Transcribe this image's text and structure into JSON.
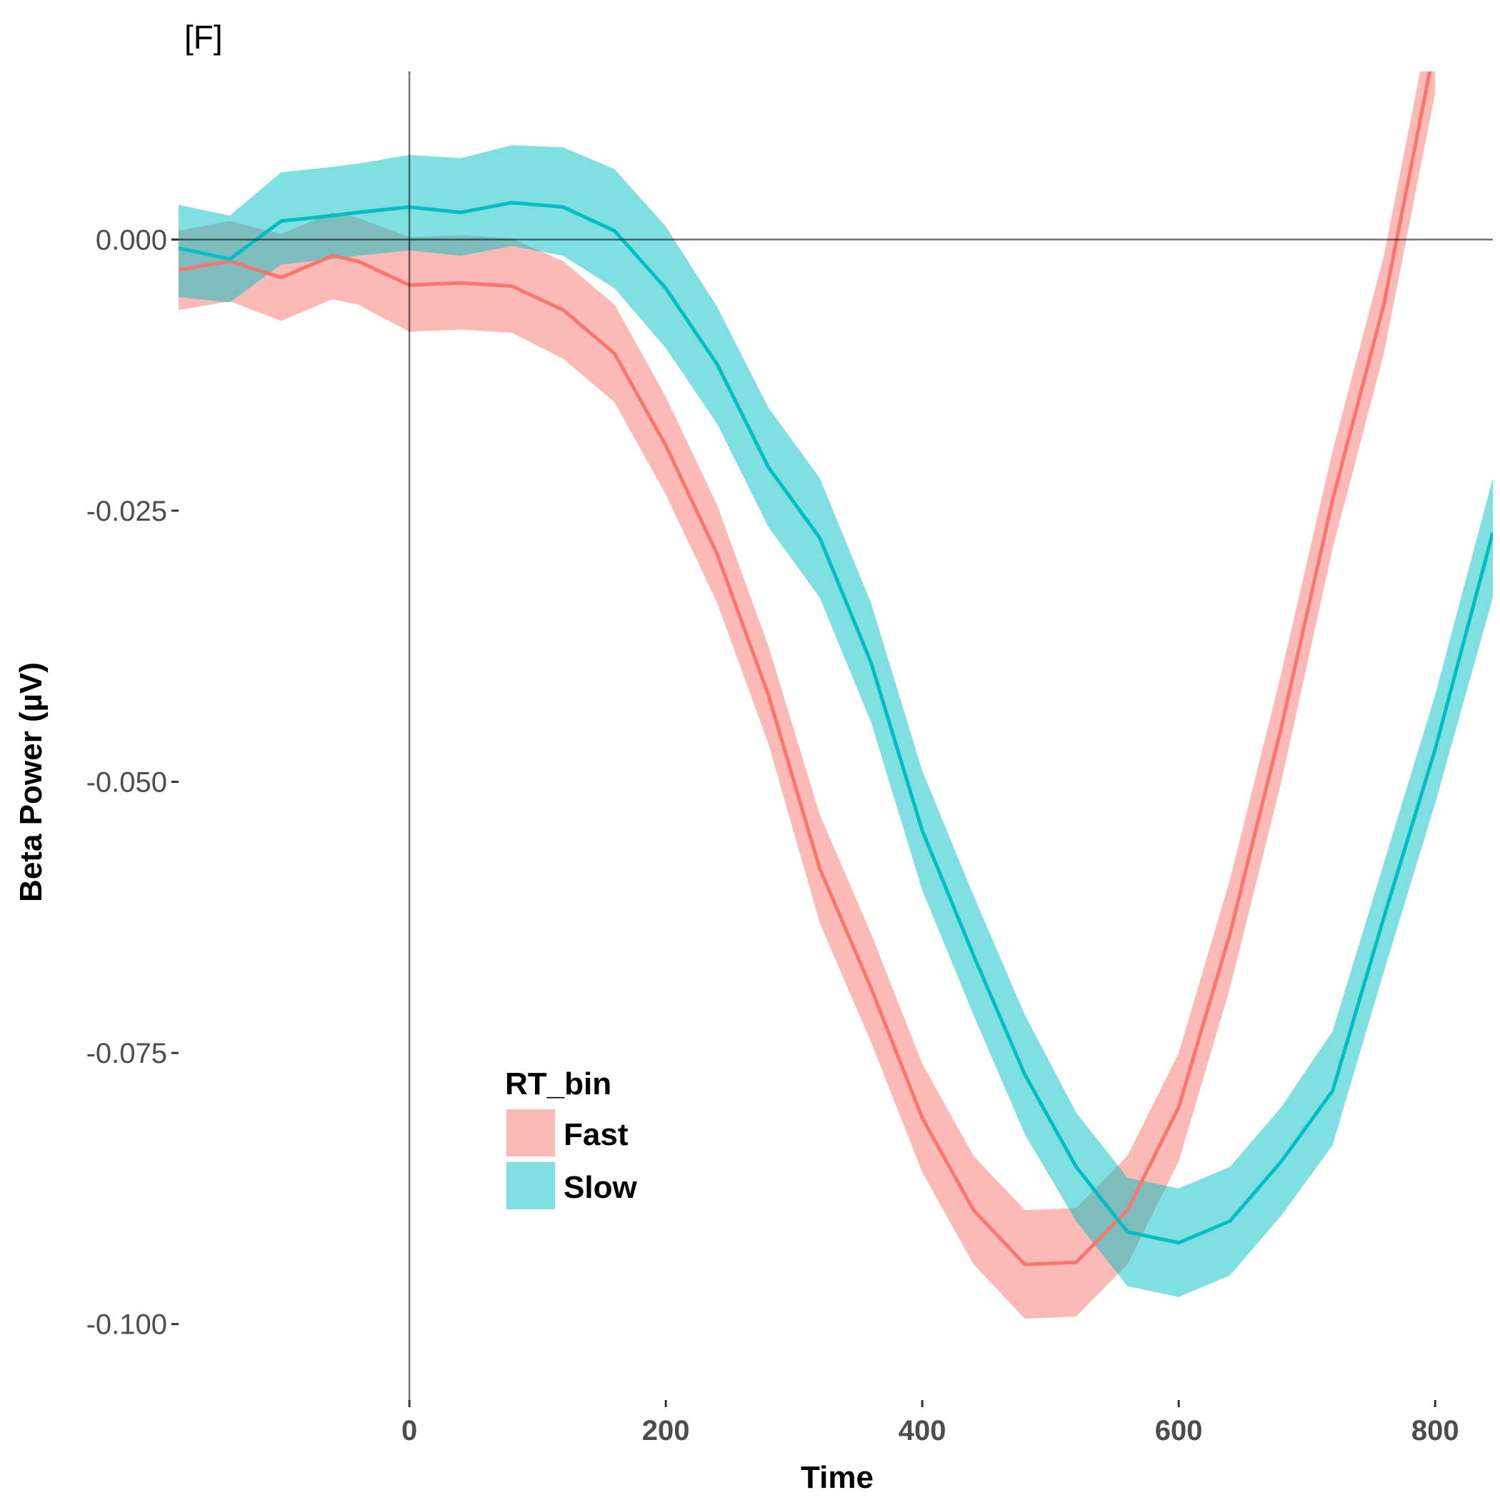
{
  "panel_tag": "[F]",
  "chart_data": {
    "type": "line",
    "title": "",
    "xlabel": "Time",
    "ylabel": "Beta Power (µV)",
    "xlim": [
      -180,
      845
    ],
    "ylim": [
      -0.107,
      0.0155
    ],
    "x_ticks": [
      0,
      200,
      400,
      600,
      800
    ],
    "y_ticks": [
      0.0,
      -0.025,
      -0.05,
      -0.075,
      -0.1
    ],
    "x_tick_labels": [
      "0",
      "200",
      "400",
      "600",
      "800"
    ],
    "y_tick_labels": [
      "0.000",
      "-0.025",
      "-0.050",
      "-0.075",
      "-0.100"
    ],
    "reference_lines": {
      "x": 0,
      "y": 0
    },
    "grid": false,
    "legend": {
      "title": "RT_bin",
      "placement": "bottom-left-inside",
      "entries": [
        "Fast",
        "Slow"
      ]
    },
    "series": [
      {
        "name": "Fast",
        "color": "#F8766D",
        "x": [
          -180,
          -140,
          -100,
          -60,
          -40,
          0,
          40,
          80,
          120,
          160,
          200,
          240,
          280,
          320,
          360,
          400,
          440,
          480,
          520,
          560,
          600,
          640,
          680,
          720,
          760,
          800
        ],
        "y": [
          -0.0028,
          -0.002,
          -0.0035,
          -0.0015,
          -0.002,
          -0.0042,
          -0.004,
          -0.0043,
          -0.0065,
          -0.0105,
          -0.019,
          -0.029,
          -0.042,
          -0.058,
          -0.069,
          -0.081,
          -0.0895,
          -0.0945,
          -0.0943,
          -0.0895,
          -0.08,
          -0.064,
          -0.045,
          -0.024,
          -0.006,
          0.018
        ],
        "lower": [
          -0.0065,
          -0.0057,
          -0.0075,
          -0.0055,
          -0.006,
          -0.0085,
          -0.0083,
          -0.0086,
          -0.011,
          -0.015,
          -0.0235,
          -0.0335,
          -0.0465,
          -0.063,
          -0.074,
          -0.086,
          -0.0945,
          -0.0995,
          -0.0993,
          -0.0945,
          -0.085,
          -0.069,
          -0.05,
          -0.0285,
          -0.0105,
          0.0135
        ],
        "upper": [
          0.0008,
          0.0017,
          0.0005,
          0.0025,
          0.002,
          0.0002,
          0.0004,
          0.0001,
          -0.002,
          -0.006,
          -0.0145,
          -0.0245,
          -0.0375,
          -0.053,
          -0.064,
          -0.076,
          -0.0845,
          -0.0895,
          -0.0893,
          -0.0845,
          -0.075,
          -0.059,
          -0.04,
          -0.0195,
          -0.0015,
          0.0225
        ]
      },
      {
        "name": "Slow",
        "color": "#00BFC4",
        "x": [
          -180,
          -140,
          -100,
          -60,
          -40,
          0,
          40,
          80,
          120,
          160,
          200,
          240,
          280,
          320,
          360,
          400,
          440,
          480,
          520,
          560,
          600,
          640,
          680,
          720,
          760,
          800,
          845
        ],
        "y": [
          -0.0008,
          -0.0018,
          0.0017,
          0.0022,
          0.0025,
          0.003,
          0.0025,
          0.0034,
          0.003,
          0.0008,
          -0.0045,
          -0.0115,
          -0.021,
          -0.0275,
          -0.039,
          -0.0545,
          -0.066,
          -0.077,
          -0.0855,
          -0.0915,
          -0.0925,
          -0.0905,
          -0.085,
          -0.0785,
          -0.0625,
          -0.047,
          -0.027
        ],
        "lower": [
          -0.0053,
          -0.0058,
          -0.0023,
          -0.0018,
          -0.0015,
          -0.001,
          -0.0015,
          -0.0006,
          -0.0015,
          -0.0045,
          -0.01,
          -0.017,
          -0.0265,
          -0.033,
          -0.0445,
          -0.06,
          -0.0715,
          -0.0825,
          -0.0905,
          -0.0965,
          -0.0975,
          -0.0955,
          -0.09,
          -0.0835,
          -0.0675,
          -0.052,
          -0.033
        ],
        "upper": [
          0.0032,
          0.0022,
          0.0062,
          0.0067,
          0.007,
          0.0078,
          0.0075,
          0.0087,
          0.0085,
          0.0065,
          0.0012,
          -0.0062,
          -0.0155,
          -0.022,
          -0.0335,
          -0.049,
          -0.0605,
          -0.0715,
          -0.0805,
          -0.0865,
          -0.0875,
          -0.0855,
          -0.08,
          -0.073,
          -0.0575,
          -0.042,
          -0.022
        ]
      }
    ]
  }
}
